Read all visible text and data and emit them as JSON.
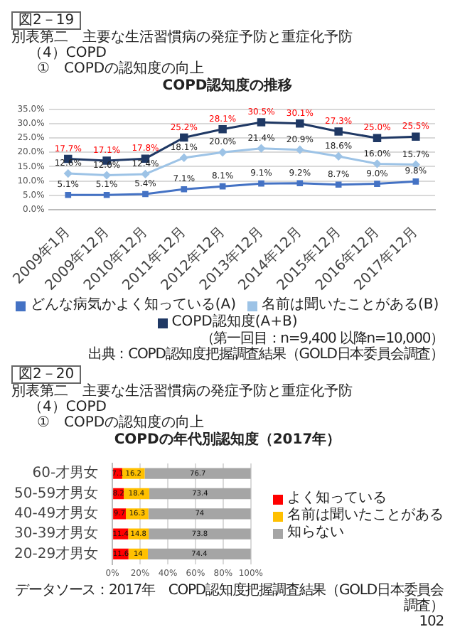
{
  "chart_data": [
    {
      "type": "line",
      "title": "COPD認知度の推移",
      "annotations": [
        "図2－19",
        "別表第二　主要な生活習慣病の発症予防と重症化予防",
        "（4）COPD",
        "①　COPDの認知度の向上",
        "（第一回目：n=9,400 以降n=10,000）",
        "出典：COPD認知度把握調査結果（GOLD日本委員会調査）"
      ],
      "categories": [
        "2009年1月",
        "2009年12月",
        "2010年12月",
        "2011年12月",
        "2012年12月",
        "2013年12月",
        "2014年12月",
        "2015年12月",
        "2016年12月",
        "2017年12月"
      ],
      "series": [
        {
          "name": "どんな病気かよく知っている(A)",
          "color": "#4472c4",
          "marker": "square",
          "values": [
            5.1,
            5.1,
            5.4,
            7.1,
            8.1,
            9.1,
            9.2,
            8.7,
            9.0,
            9.8
          ],
          "value_labels": [
            "5.1%",
            "5.1%",
            "5.4%",
            "7.1%",
            "8.1%",
            "9.1%",
            "9.2%",
            "8.7%",
            "9.0%",
            "9.8%"
          ]
        },
        {
          "name": "名前は聞いたことがある(B)",
          "color": "#9dc3e6",
          "marker": "diamond",
          "values": [
            12.6,
            12.0,
            12.4,
            18.1,
            20.0,
            21.4,
            20.9,
            18.6,
            16.0,
            15.7
          ],
          "value_labels": [
            "12.6%",
            "12.0%",
            "12.4%",
            "18.1%",
            "20.0%",
            "21.4%",
            "20.9%",
            "18.6%",
            "16.0%",
            "15.7%"
          ]
        },
        {
          "name": "COPD認知度(A+B)",
          "color": "#1f3864",
          "marker": "square",
          "values": [
            17.7,
            17.1,
            17.8,
            25.2,
            28.1,
            30.5,
            30.1,
            27.3,
            25.0,
            25.5
          ],
          "value_labels": [
            "17.7%",
            "17.1%",
            "17.8%",
            "25.2%",
            "28.1%",
            "30.5%",
            "30.1%",
            "27.3%",
            "25.0%",
            "25.5%"
          ]
        }
      ],
      "ylim": [
        0,
        35
      ],
      "yticks": [
        {
          "value": 0,
          "label": "0.0%"
        },
        {
          "value": 5,
          "label": "5.0%"
        },
        {
          "value": 10,
          "label": "10.0%"
        },
        {
          "value": 15,
          "label": "15.0%"
        },
        {
          "value": 20,
          "label": "20.0%"
        },
        {
          "value": 25,
          "label": "25.0%"
        },
        {
          "value": 30,
          "label": "30.0%"
        },
        {
          "value": 35,
          "label": "35.0%"
        }
      ],
      "grid": "y",
      "legend": "bottom"
    },
    {
      "type": "bar",
      "title": "COPDの年代別認知度（2017年）",
      "orientation": "horizontal",
      "stacked": true,
      "annotations": [
        "図2－20",
        "別表第二　主要な生活習慣病の発症予防と重症化予防",
        "（4）COPD",
        "①　COPDの認知度の向上",
        "データソース：2017年　COPD認知度把握調査結果（GOLD日本委員会調査）",
        "102"
      ],
      "categories": [
        "60-才男女",
        "50-59才男女",
        "40-49才男女",
        "30-39才男女",
        "20-29才男女"
      ],
      "series": [
        {
          "name": "よく知っている",
          "color": "#ff0000",
          "values": [
            7.1,
            8.2,
            9.7,
            11.4,
            11.6
          ]
        },
        {
          "name": "名前は聞いたことがある",
          "color": "#ffc000",
          "values": [
            16.2,
            18.4,
            16.3,
            14.8,
            14
          ]
        },
        {
          "name": "知らない",
          "color": "#a5a5a5",
          "values": [
            76.7,
            73.4,
            74,
            73.8,
            74.4
          ]
        }
      ],
      "xlim": [
        0,
        100
      ],
      "xticks": [
        {
          "value": 0,
          "label": "0%"
        },
        {
          "value": 20,
          "label": "20%"
        },
        {
          "value": 40,
          "label": "40%"
        },
        {
          "value": 60,
          "label": "60%"
        },
        {
          "value": 80,
          "label": "80%"
        },
        {
          "value": 100,
          "label": "100%"
        }
      ],
      "grid": "x",
      "legend": "right",
      "data_labels": true
    }
  ]
}
